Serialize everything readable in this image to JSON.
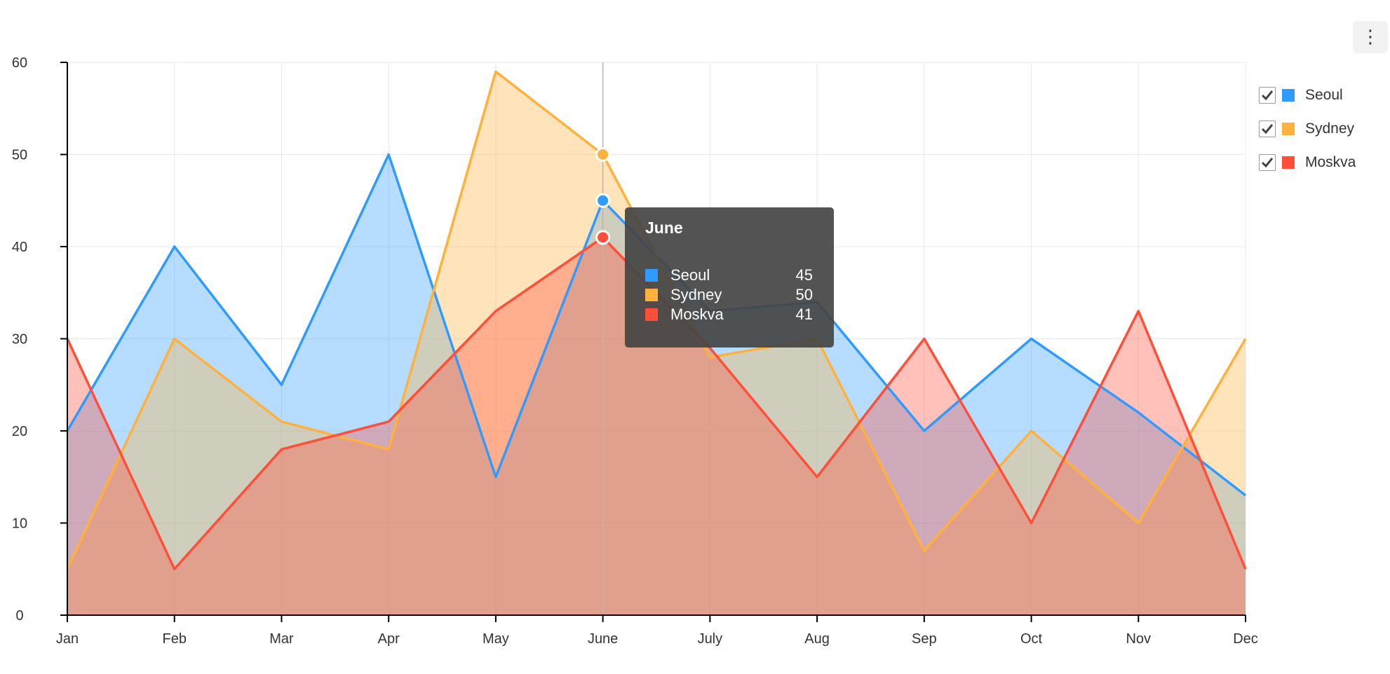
{
  "chart_data": {
    "type": "area",
    "categories": [
      "Jan",
      "Feb",
      "Mar",
      "Apr",
      "May",
      "June",
      "July",
      "Aug",
      "Sep",
      "Oct",
      "Nov",
      "Dec"
    ],
    "series": [
      {
        "name": "Seoul",
        "color": "#2f9bff",
        "values": [
          20,
          40,
          25,
          50,
          15,
          45,
          33,
          34,
          20,
          30,
          22,
          13
        ]
      },
      {
        "name": "Sydney",
        "color": "#ffb13d",
        "values": [
          5,
          30,
          21,
          18,
          59,
          50,
          28,
          30,
          7,
          20,
          10,
          30
        ]
      },
      {
        "name": "Moskva",
        "color": "#ff4e3a",
        "values": [
          30,
          5,
          18,
          21,
          33,
          41,
          29,
          15,
          30,
          10,
          33,
          5
        ]
      }
    ],
    "ylim": [
      0,
      60
    ],
    "yticks": [
      0,
      10,
      20,
      30,
      40,
      50,
      60
    ],
    "grid": true,
    "legend_position": "right",
    "tooltip": {
      "title": "June",
      "category_index": 5,
      "rows": [
        {
          "name": "Seoul",
          "value": "45",
          "color": "#2f9bff"
        },
        {
          "name": "Sydney",
          "value": "50",
          "color": "#ffb13d"
        },
        {
          "name": "Moskva",
          "value": "41",
          "color": "#ff4e3a"
        }
      ]
    }
  },
  "legend": {
    "items": [
      {
        "label": "Seoul",
        "color": "#2f9bff",
        "checked": true
      },
      {
        "label": "Sydney",
        "color": "#ffb13d",
        "checked": true
      },
      {
        "label": "Moskva",
        "color": "#ff4e3a",
        "checked": true
      }
    ]
  },
  "toolbar": {
    "more_icon": "vertical-ellipsis-icon",
    "more_glyph": "⋮"
  }
}
